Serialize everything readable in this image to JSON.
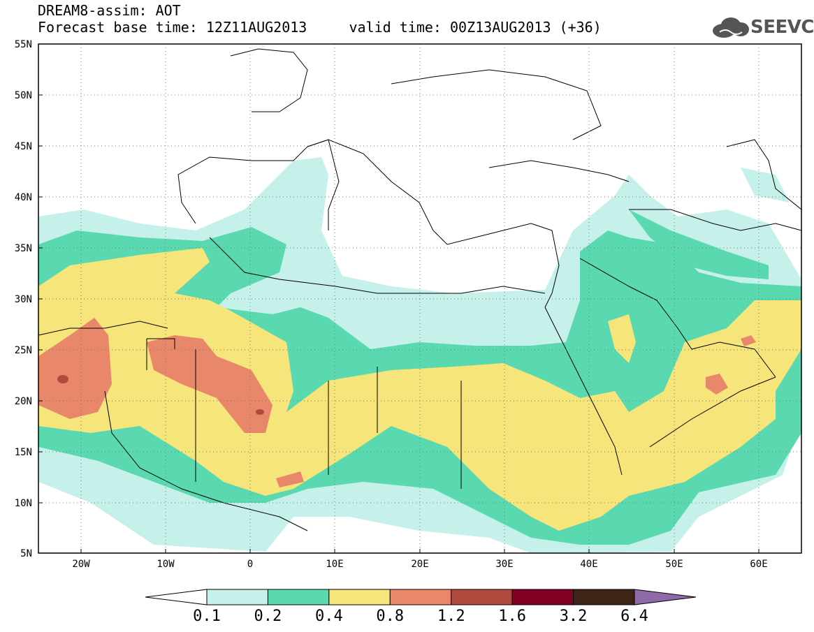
{
  "header": {
    "line1": "DREAM8-assim: AOT",
    "line2": "Forecast base time: 12Z11AUG2013     valid time: 00Z13AUG2013 (+36)"
  },
  "logo": {
    "text": "SEEVCCC",
    "icon": "cloud-icon"
  },
  "map": {
    "lon_ticks": [
      "20W",
      "10W",
      "0",
      "10E",
      "20E",
      "30E",
      "40E",
      "50E",
      "60E"
    ],
    "lat_ticks": [
      "55N",
      "50N",
      "45N",
      "40N",
      "35N",
      "30N",
      "25N",
      "20N",
      "15N",
      "10N",
      "5N"
    ],
    "lon_range": [
      -25,
      65
    ],
    "lat_range": [
      5,
      55
    ],
    "grid": "dotted"
  },
  "colorbar": {
    "labels": [
      "0.1",
      "0.2",
      "0.4",
      "0.8",
      "1.2",
      "1.6",
      "3.2",
      "6.4"
    ],
    "colors": [
      "#ffffff",
      "#c6f0ea",
      "#5ad9b0",
      "#f5e57a",
      "#e8876a",
      "#b04a3e",
      "#820024",
      "#3d2417",
      "#8f6aa8"
    ]
  }
}
